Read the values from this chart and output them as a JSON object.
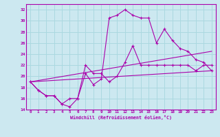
{
  "xlabel": "Windchill (Refroidissement éolien,°C)",
  "bg_color": "#cce8f0",
  "grid_color": "#aad8e0",
  "line_color": "#aa00aa",
  "xlim": [
    -0.5,
    23.5
  ],
  "ylim": [
    14,
    33
  ],
  "yticks": [
    14,
    16,
    18,
    20,
    22,
    24,
    26,
    28,
    30,
    32
  ],
  "xticks": [
    0,
    1,
    2,
    3,
    4,
    5,
    6,
    7,
    8,
    9,
    10,
    11,
    12,
    13,
    14,
    15,
    16,
    17,
    18,
    19,
    20,
    21,
    22,
    23
  ],
  "series_spiky_x": [
    0,
    1,
    2,
    3,
    4,
    5,
    6,
    7,
    8,
    9,
    10,
    11,
    12,
    13,
    14,
    15,
    16,
    17,
    18,
    19,
    20,
    21,
    22,
    23
  ],
  "series_spiky_y": [
    19,
    17.5,
    16.5,
    16.5,
    15.0,
    14.5,
    16.0,
    20.5,
    18.5,
    19.5,
    30.5,
    31.0,
    32.0,
    31.0,
    30.5,
    30.5,
    26.0,
    28.5,
    26.5,
    25.0,
    24.5,
    23.0,
    22.5,
    21.0
  ],
  "series_smooth_x": [
    0,
    1,
    2,
    3,
    4,
    5,
    6,
    7,
    8,
    9,
    10,
    11,
    12,
    13,
    14,
    15,
    16,
    17,
    18,
    19,
    20,
    21,
    22,
    23
  ],
  "series_smooth_y": [
    19,
    17.5,
    16.5,
    16.5,
    15.0,
    16.0,
    16.0,
    22.0,
    20.5,
    20.5,
    19.0,
    20.0,
    22.5,
    25.5,
    22.0,
    22.0,
    22.0,
    22.0,
    22.0,
    22.0,
    22.0,
    21.0,
    22.0,
    22.0
  ],
  "line1_x": [
    0,
    23
  ],
  "line1_y": [
    19.0,
    21.0
  ],
  "line2_x": [
    0,
    23
  ],
  "line2_y": [
    19.0,
    24.5
  ]
}
